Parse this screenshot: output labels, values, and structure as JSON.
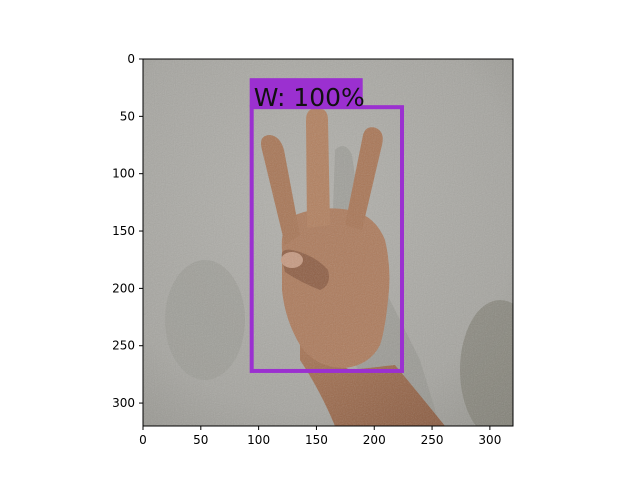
{
  "image": {
    "description_only": "",
    "width": 320,
    "height": 320
  },
  "axes": {
    "xlim": [
      0,
      320
    ],
    "ylim": [
      320,
      0
    ],
    "xticks": [
      0,
      50,
      100,
      150,
      200,
      250,
      300
    ],
    "yticks": [
      0,
      50,
      100,
      150,
      200,
      250,
      300
    ]
  },
  "detection": {
    "label": "W: 100%",
    "box": {
      "x_min": 94,
      "y_min": 42,
      "x_max": 224,
      "y_max": 272
    },
    "color": "#9b30d0"
  },
  "colors": {
    "background_wall": "#a9a8a3",
    "skin": "#b07f62",
    "skin_shadow": "#8a5e45"
  }
}
